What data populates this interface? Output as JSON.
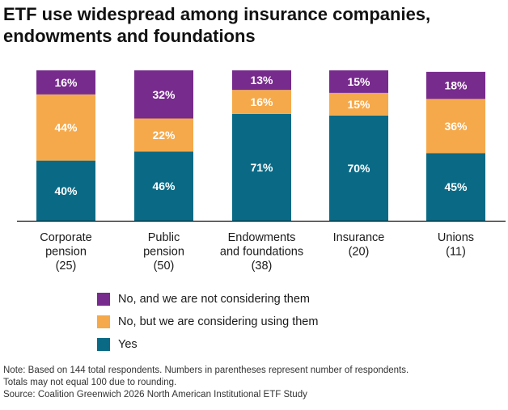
{
  "title": {
    "line1": "ETF use widespread among insurance companies,",
    "line2": "endowments and foundations"
  },
  "colors": {
    "yes": "#0a6a85",
    "considering": "#f5a94a",
    "not_considering": "#772b8c",
    "axis": "#111111"
  },
  "chart_data": {
    "type": "bar",
    "stacked": true,
    "categories": [
      [
        "Corporate",
        "pension",
        "(25)"
      ],
      [
        "Public",
        "pension",
        "(50)"
      ],
      [
        "Endowments",
        "and foundations",
        "(38)"
      ],
      [
        "Insurance",
        "(20)"
      ],
      [
        "Unions",
        "(11)"
      ]
    ],
    "series": [
      {
        "name": "Yes",
        "values": [
          40,
          46,
          71,
          70,
          45
        ],
        "labels": [
          "40%",
          "46%",
          "71%",
          "70%",
          "45%"
        ]
      },
      {
        "name": "No, but we are considering using them",
        "values": [
          44,
          22,
          16,
          15,
          36
        ],
        "labels": [
          "44%",
          "22%",
          "16%",
          "15%",
          "36%"
        ]
      },
      {
        "name": "No, and we are not considering them",
        "values": [
          16,
          32,
          13,
          15,
          18
        ],
        "labels": [
          "16%",
          "32%",
          "13%",
          "15%",
          "18%"
        ]
      }
    ],
    "ylim": [
      0,
      100
    ],
    "legend_position": "bottom-left"
  },
  "legend": [
    {
      "label": "No, and we are not considering them",
      "color": "#772b8c"
    },
    {
      "label": "No, but we are considering using them",
      "color": "#f5a94a"
    },
    {
      "label": "Yes",
      "color": "#0a6a85"
    }
  ],
  "note": {
    "line1": "Note: Based on 144 total respondents. Numbers in parentheses represent number of respondents.",
    "line2": "Totals may not equal 100 due to rounding.",
    "line3": "Source: Coalition Greenwich 2026 North American Institutional ETF Study"
  }
}
